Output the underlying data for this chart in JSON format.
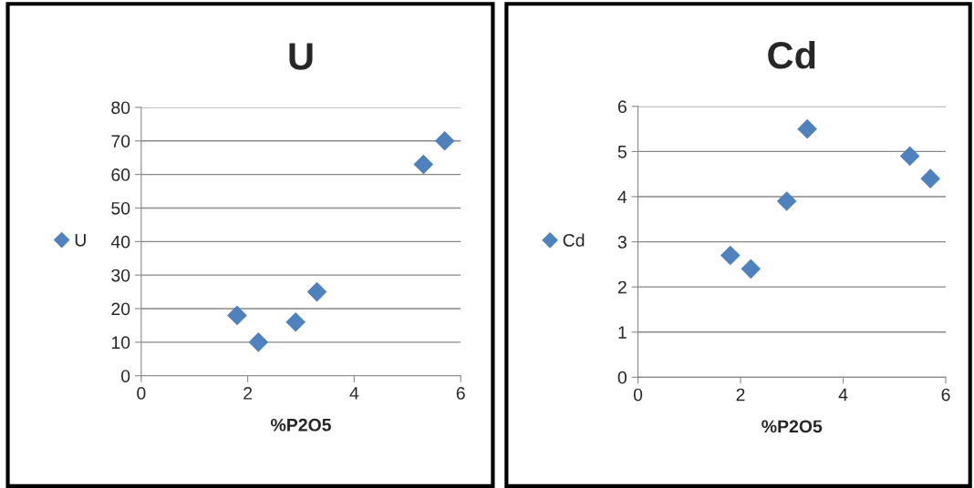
{
  "chart_data": [
    {
      "type": "scatter",
      "title": "U",
      "xlabel": "%P2O5",
      "x": [
        1.8,
        2.2,
        2.9,
        3.3,
        5.3,
        5.7
      ],
      "series": [
        {
          "name": "U",
          "color": "#4f81bd",
          "values": [
            18,
            10,
            16,
            25,
            63,
            70
          ]
        }
      ],
      "xlim": [
        0,
        6
      ],
      "xticks": [
        0,
        2,
        4,
        6
      ],
      "ylim": [
        0,
        80
      ],
      "yticks": [
        0,
        10,
        20,
        30,
        40,
        50,
        60,
        70,
        80
      ],
      "grid": "y",
      "legend": "left",
      "marker": "diamond"
    },
    {
      "type": "scatter",
      "title": "Cd",
      "xlabel": "%P2O5",
      "x": [
        1.8,
        2.2,
        2.9,
        3.3,
        5.3,
        5.7
      ],
      "series": [
        {
          "name": "Cd",
          "color": "#4f81bd",
          "values": [
            2.7,
            2.4,
            3.9,
            5.5,
            4.9,
            4.4
          ]
        }
      ],
      "xlim": [
        0,
        6
      ],
      "xticks": [
        0,
        2,
        4,
        6
      ],
      "ylim": [
        0,
        6
      ],
      "yticks": [
        0,
        1,
        2,
        3,
        4,
        5,
        6
      ],
      "grid": "y",
      "legend": "left",
      "marker": "diamond"
    }
  ]
}
